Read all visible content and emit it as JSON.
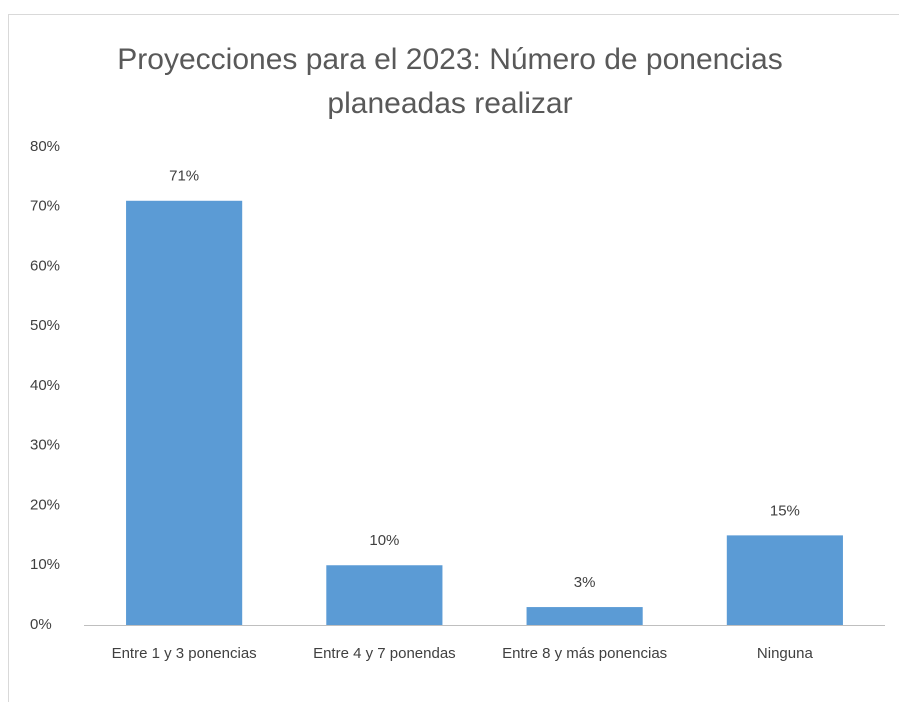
{
  "chart_data": {
    "type": "bar",
    "title": "Proyecciones para el 2023: Número de ponencias planeadas realizar",
    "categories": [
      "Entre 1 y 3 ponencias",
      "Entre 4 y  7 ponendas",
      "Entre 8 y más ponencias",
      "Ninguna"
    ],
    "values": [
      71,
      10,
      3,
      15
    ],
    "value_labels": [
      "71%",
      "10%",
      "3%",
      "15%"
    ],
    "color": "#5b9bd5",
    "ylim": [
      0,
      80
    ],
    "yticks": [
      {
        "value": 0,
        "label": "0%"
      },
      {
        "value": 10,
        "label": "10%"
      },
      {
        "value": 20,
        "label": "20%"
      },
      {
        "value": 30,
        "label": "30%"
      },
      {
        "value": 40,
        "label": "40%"
      },
      {
        "value": 50,
        "label": "50%"
      },
      {
        "value": 60,
        "label": "60%"
      },
      {
        "value": 70,
        "label": "70%"
      },
      {
        "value": 80,
        "label": "80%"
      }
    ],
    "grid": false
  }
}
